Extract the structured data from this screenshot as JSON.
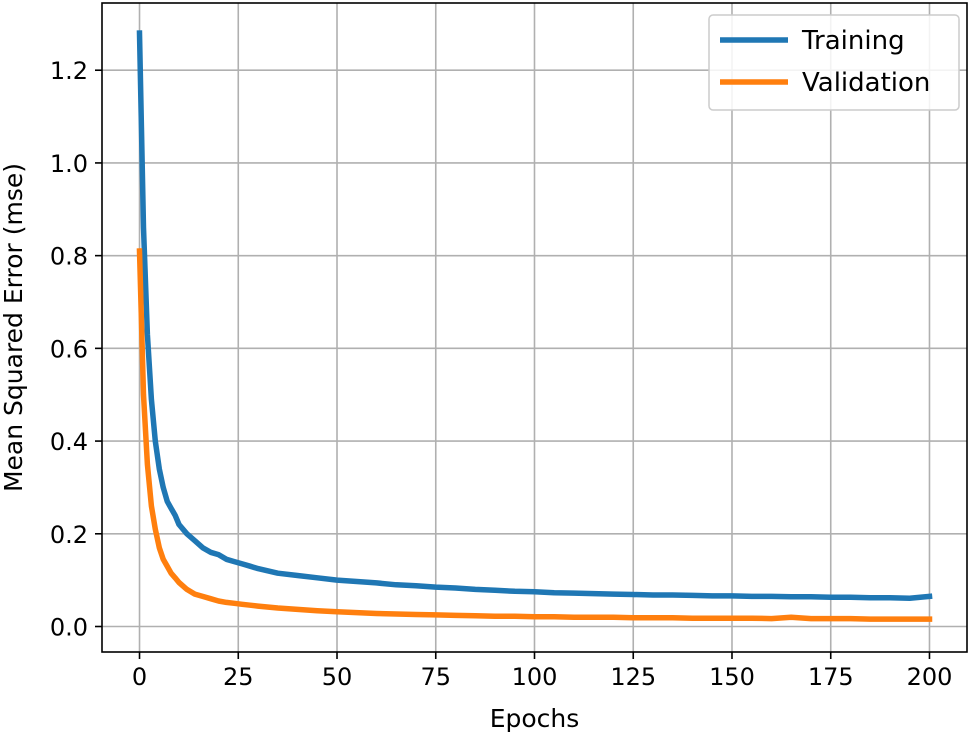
{
  "chart_data": {
    "type": "line",
    "xlabel": "Epochs",
    "ylabel": "Mean Squared Error (mse)",
    "xlim": [
      -9.5,
      209.5
    ],
    "ylim": [
      -0.055,
      1.345
    ],
    "xticks": [
      0,
      25,
      50,
      75,
      100,
      125,
      150,
      175,
      200
    ],
    "xtick_labels": [
      "0",
      "25",
      "50",
      "75",
      "100",
      "125",
      "150",
      "175",
      "200"
    ],
    "yticks": [
      0.0,
      0.2,
      0.4,
      0.6,
      0.8,
      1.0,
      1.2
    ],
    "ytick_labels": [
      "0.0",
      "0.2",
      "0.4",
      "0.6",
      "0.8",
      "1.0",
      "1.2"
    ],
    "grid": true,
    "legend_position": "top-right",
    "series": [
      {
        "name": "Training",
        "color": "#1f77b4",
        "x": [
          0,
          1,
          2,
          3,
          4,
          5,
          6,
          7,
          8,
          9,
          10,
          12,
          14,
          16,
          18,
          20,
          22,
          24,
          26,
          28,
          30,
          35,
          40,
          45,
          50,
          55,
          60,
          65,
          70,
          75,
          80,
          85,
          90,
          95,
          100,
          105,
          110,
          115,
          120,
          125,
          130,
          135,
          140,
          145,
          150,
          155,
          160,
          165,
          170,
          175,
          180,
          185,
          190,
          195,
          200
        ],
        "y": [
          1.28,
          0.86,
          0.63,
          0.49,
          0.4,
          0.34,
          0.3,
          0.27,
          0.255,
          0.24,
          0.22,
          0.2,
          0.185,
          0.17,
          0.16,
          0.155,
          0.145,
          0.14,
          0.135,
          0.13,
          0.125,
          0.115,
          0.11,
          0.105,
          0.1,
          0.097,
          0.094,
          0.09,
          0.088,
          0.085,
          0.083,
          0.08,
          0.078,
          0.076,
          0.075,
          0.073,
          0.072,
          0.071,
          0.07,
          0.069,
          0.068,
          0.068,
          0.067,
          0.066,
          0.066,
          0.065,
          0.065,
          0.064,
          0.064,
          0.063,
          0.063,
          0.062,
          0.062,
          0.061,
          0.065
        ]
      },
      {
        "name": "Validation",
        "color": "#ff7f0e",
        "x": [
          0,
          1,
          2,
          3,
          4,
          5,
          6,
          7,
          8,
          9,
          10,
          12,
          14,
          16,
          18,
          20,
          22,
          24,
          26,
          28,
          30,
          35,
          40,
          45,
          50,
          55,
          60,
          65,
          70,
          75,
          80,
          85,
          90,
          95,
          100,
          105,
          110,
          115,
          120,
          125,
          130,
          135,
          140,
          145,
          150,
          155,
          160,
          165,
          170,
          175,
          180,
          185,
          190,
          195,
          200
        ],
        "y": [
          0.81,
          0.5,
          0.35,
          0.26,
          0.21,
          0.17,
          0.145,
          0.13,
          0.115,
          0.105,
          0.095,
          0.08,
          0.07,
          0.065,
          0.06,
          0.055,
          0.052,
          0.05,
          0.048,
          0.046,
          0.044,
          0.04,
          0.037,
          0.034,
          0.032,
          0.03,
          0.028,
          0.027,
          0.026,
          0.025,
          0.024,
          0.023,
          0.022,
          0.022,
          0.021,
          0.021,
          0.02,
          0.02,
          0.02,
          0.019,
          0.019,
          0.019,
          0.018,
          0.018,
          0.018,
          0.018,
          0.017,
          0.02,
          0.017,
          0.017,
          0.017,
          0.016,
          0.016,
          0.016,
          0.016
        ]
      }
    ]
  }
}
